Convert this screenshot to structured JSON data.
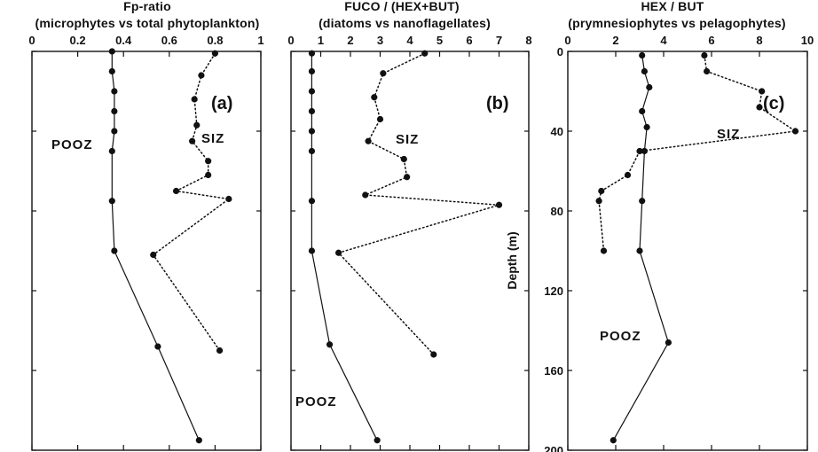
{
  "colors": {
    "ink": "#111111",
    "background": "#ffffff"
  },
  "chart_data": [
    {
      "type": "line",
      "panel_label": "(a)",
      "title": "Fp-ratio",
      "subtitle": "(microphytes vs total phytoplankton)",
      "x_ticks": [
        "0",
        "0.2",
        "0.4",
        "0.6",
        "0.8",
        "1"
      ],
      "xlim": [
        0,
        1
      ],
      "ylim": [
        0,
        200
      ],
      "y_inverted": true,
      "grid": false,
      "series": [
        {
          "name": "POOZ",
          "style": "solid",
          "x": [
            0.35,
            0.35,
            0.36,
            0.36,
            0.36,
            0.35,
            0.35,
            0.36,
            0.55,
            0.73
          ],
          "y": [
            0,
            10,
            20,
            30,
            40,
            50,
            75,
            100,
            148,
            195
          ]
        },
        {
          "name": "SIZ",
          "style": "dotted",
          "x": [
            0.8,
            0.74,
            0.71,
            0.72,
            0.7,
            0.77,
            0.77,
            0.63,
            0.86,
            0.53,
            0.82
          ],
          "y": [
            1,
            12,
            24,
            37,
            45,
            55,
            62,
            70,
            74,
            102,
            150
          ]
        }
      ]
    },
    {
      "type": "line",
      "panel_label": "(b)",
      "title": "FUCO  / (HEX+BUT)",
      "subtitle": "(diatoms vs nanoflagellates)",
      "x_ticks": [
        "0",
        "1",
        "2",
        "3",
        "4",
        "5",
        "6",
        "7",
        "8"
      ],
      "xlim": [
        0,
        8
      ],
      "ylim": [
        0,
        200
      ],
      "y_inverted": true,
      "grid": false,
      "series": [
        {
          "name": "POOZ",
          "style": "solid",
          "x": [
            0.7,
            0.7,
            0.7,
            0.7,
            0.7,
            0.7,
            0.7,
            0.7,
            1.3,
            2.9
          ],
          "y": [
            1,
            10,
            20,
            30,
            40,
            50,
            75,
            100,
            147,
            195
          ]
        },
        {
          "name": "SIZ",
          "style": "dotted",
          "x": [
            4.5,
            3.1,
            2.8,
            3.0,
            2.6,
            3.8,
            3.9,
            2.5,
            7.0,
            1.6,
            4.8
          ],
          "y": [
            1,
            11,
            23,
            34,
            45,
            54,
            63,
            72,
            77,
            101,
            152
          ]
        }
      ]
    },
    {
      "type": "line",
      "panel_label": "(c)",
      "title": "HEX / BUT",
      "subtitle": "(prymnesiophytes vs pelagophytes)",
      "x_ticks": [
        "0",
        "2",
        "4",
        "6",
        "8",
        "10"
      ],
      "y_ticks": [
        "0",
        "40",
        "80",
        "120",
        "160",
        "200"
      ],
      "ylabel": "Depth (m)",
      "xlim": [
        0,
        10
      ],
      "ylim": [
        0,
        200
      ],
      "y_inverted": true,
      "grid": false,
      "series": [
        {
          "name": "POOZ",
          "style": "solid",
          "x": [
            3.1,
            3.2,
            3.4,
            3.1,
            3.3,
            3.2,
            3.1,
            3.0,
            4.2,
            1.9
          ],
          "y": [
            2,
            10,
            18,
            30,
            38,
            50,
            75,
            100,
            146,
            195
          ]
        },
        {
          "name": "SIZ",
          "style": "dotted",
          "x": [
            5.7,
            5.8,
            8.1,
            8.0,
            9.5,
            3.0,
            2.5,
            1.4,
            1.3,
            1.5
          ],
          "y": [
            2,
            10,
            20,
            28,
            40,
            50,
            62,
            70,
            75,
            100
          ]
        }
      ]
    }
  ]
}
